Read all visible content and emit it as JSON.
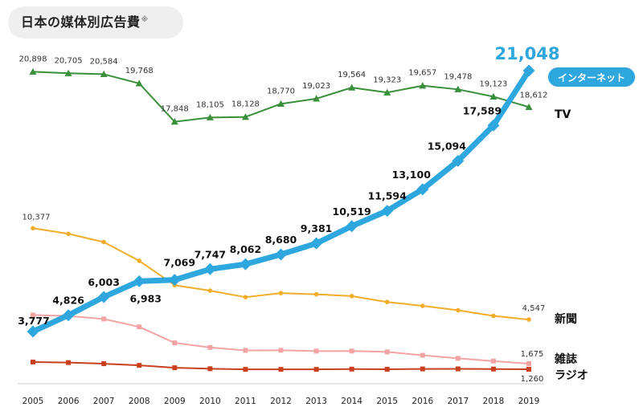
{
  "title": "日本の媒体別広告費",
  "title_mark": "※",
  "chart_data": {
    "type": "line",
    "title": "日本の媒体別広告費",
    "xlabel": "",
    "ylabel": "",
    "x": [
      "2005",
      "2006",
      "2007",
      "2008",
      "2009",
      "2010",
      "2011",
      "2012",
      "2013",
      "2014",
      "2015",
      "2016",
      "2017",
      "2018",
      "2019"
    ],
    "ylim": [
      0,
      22000
    ],
    "grid": false,
    "legend": "inline labels at line ends",
    "series": [
      {
        "name": "TV",
        "color": "#3a8f3a",
        "marker": "triangle",
        "values": [
          20898,
          20705,
          20584,
          19768,
          17848,
          18105,
          18128,
          18770,
          19023,
          19564,
          19323,
          19657,
          19478,
          19123,
          18612
        ],
        "labels": [
          "20,898",
          "20,705",
          "20,584",
          "19,768",
          "17,848",
          "18,105",
          "18,128",
          "18,770",
          "19,023",
          "19,564",
          "19,323",
          "19,657",
          "19,478",
          "19,123",
          "18,612"
        ]
      },
      {
        "name": "インターネット",
        "color": "#2ea6de",
        "marker": "diamond",
        "values": [
          3777,
          4826,
          6003,
          6983,
          7069,
          7747,
          8062,
          8680,
          9381,
          10519,
          11594,
          13100,
          15094,
          17589,
          21048
        ],
        "labels": [
          "3,777",
          "4,826",
          "6,003",
          "6,983",
          "7,069",
          "7,747",
          "8,062",
          "8,680",
          "9,381",
          "10,519",
          "11,594",
          "13,100",
          "15,094",
          "17,589",
          "21,048"
        ]
      },
      {
        "name": "新聞",
        "color": "#f0ad2a",
        "marker": "circle",
        "values": [
          10377,
          9986,
          9462,
          8276,
          6739,
          6396,
          5990,
          6242,
          6170,
          6057,
          5679,
          5431,
          5147,
          4784,
          4547
        ],
        "labels": [
          "10,377",
          "",
          "",
          "",
          "",
          "",
          "",
          "",
          "",
          "",
          "",
          "",
          "",
          "",
          "4,547"
        ]
      },
      {
        "name": "雑誌",
        "color": "#f2a3a3",
        "marker": "square",
        "values": [
          4842,
          4777,
          4585,
          4078,
          3034,
          2733,
          2542,
          2551,
          2499,
          2500,
          2443,
          2223,
          2023,
          1841,
          1675
        ],
        "labels": [
          "",
          "",
          "",
          "",
          "",
          "",
          "",
          "",
          "",
          "",
          "",
          "",
          "",
          "",
          "1,675"
        ]
      },
      {
        "name": "ラジオ",
        "color": "#c8401f",
        "marker": "square",
        "values": [
          1778,
          1744,
          1671,
          1549,
          1370,
          1299,
          1247,
          1246,
          1243,
          1272,
          1254,
          1285,
          1290,
          1278,
          1260
        ],
        "labels": [
          "",
          "",
          "",
          "",
          "",
          "",
          "",
          "",
          "",
          "",
          "",
          "",
          "",
          "",
          "1,260"
        ]
      }
    ],
    "callouts": {
      "net_last_value": "21,048",
      "net_badge": "インターネット",
      "tv_label": "TV",
      "newspaper_label": "新聞",
      "magazine_label": "雑誌",
      "radio_label": "ラジオ"
    }
  }
}
